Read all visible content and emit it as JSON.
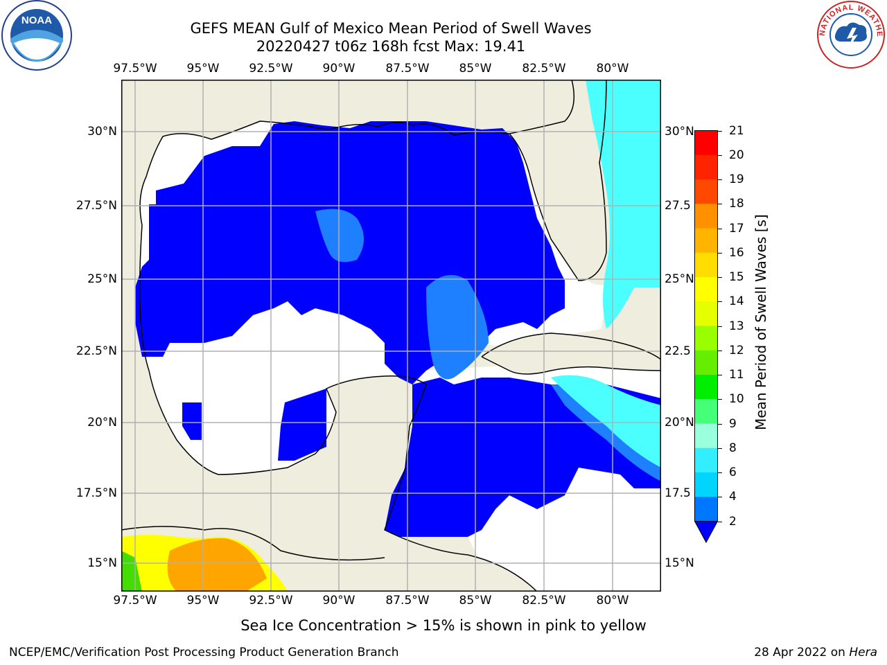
{
  "header": {
    "title_line1": "GEFS MEAN Gulf of Mexico Mean Period of Swell Waves",
    "title_line2": "20220427 t06z 168h fcst   Max: 19.41"
  },
  "logos": {
    "left": {
      "name": "noaa-logo",
      "text": "NOAA"
    },
    "right": {
      "name": "nws-logo",
      "text": "NATIONAL WEATHER SERVICE"
    }
  },
  "map": {
    "lon_ticks": [
      "97.5°W",
      "95°W",
      "92.5°W",
      "90°W",
      "87.5°W",
      "85°W",
      "82.5°W",
      "80°W"
    ],
    "lat_ticks_left": [
      "30°N",
      "27.5°N",
      "25°N",
      "22.5°N",
      "20°N",
      "17.5°N",
      "15°N"
    ],
    "lat_ticks_right": [
      "30°N",
      "27.5",
      "25°N",
      "22.5",
      "20°N",
      "17.5",
      "15°N"
    ],
    "colors": {
      "land": "#efedde",
      "ocean_low": "#0000ff",
      "ocean_mid": "#1e7fff",
      "ocean_high": "#4cffff",
      "grid": "#b0b0b0"
    }
  },
  "colorbar": {
    "title": "Mean Period of Swell Waves [s]",
    "labels": [
      "21",
      "20",
      "19",
      "18",
      "17",
      "16",
      "15",
      "14",
      "13",
      "12",
      "11",
      "10",
      "9",
      "8",
      "6",
      "4",
      "2"
    ],
    "colors": [
      "#ff0000",
      "#ff2400",
      "#ff4800",
      "#ff6c00",
      "#ff9000",
      "#ffb400",
      "#ffdd00",
      "#ffff00",
      "#e6ff00",
      "#ccff00",
      "#99ff00",
      "#66ee00",
      "#00ee00",
      "#44ff77",
      "#99ffdd",
      "#66ffff",
      "#33eeff",
      "#00d4ff",
      "#0077ff"
    ],
    "extend_color": "#0000ff"
  },
  "note": "Sea Ice Concentration > 15% is shown in pink to yellow",
  "footer": {
    "left": "NCEP/EMC/Verification Post Processing Product Generation Branch",
    "date": "28 Apr 2022 on ",
    "machine": "Hera"
  }
}
